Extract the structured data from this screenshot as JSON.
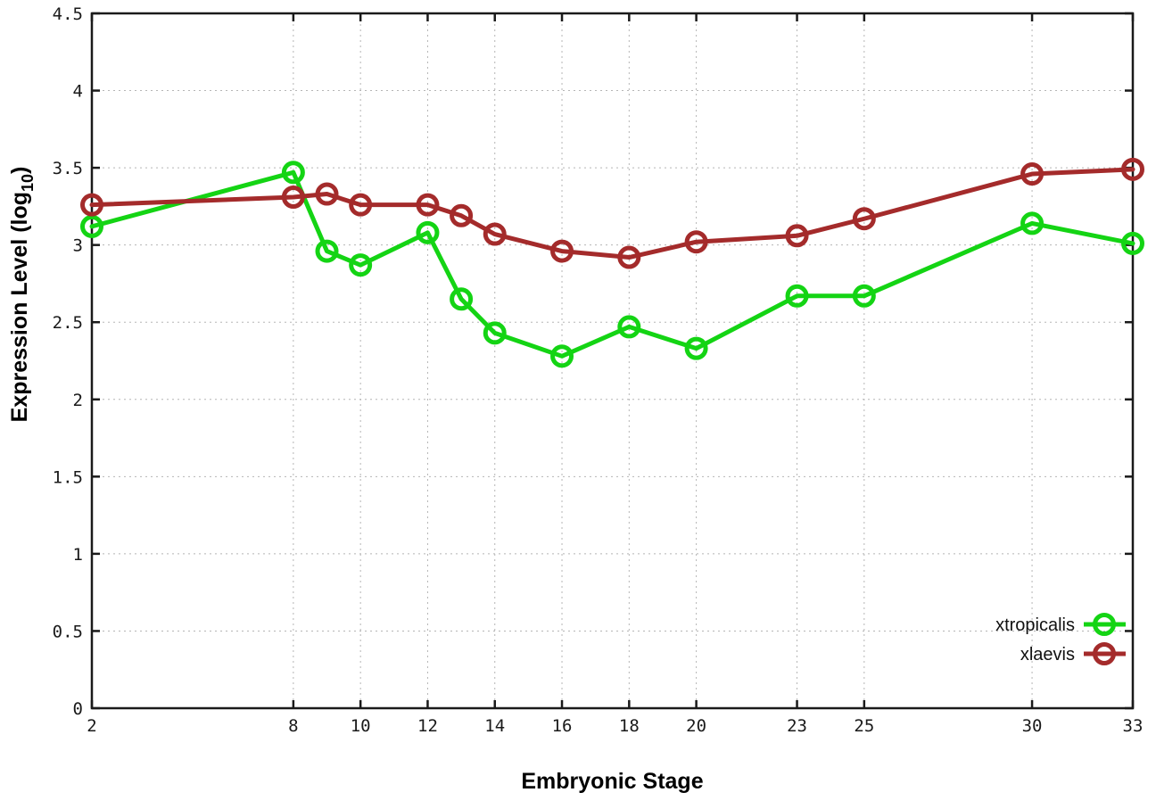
{
  "chart_data": {
    "type": "line",
    "title": "",
    "xlabel": "Embryonic Stage",
    "ylabel_main": "Expression Level (log",
    "ylabel_sub": "10",
    "ylabel_close": ")",
    "xlim": [
      2,
      33
    ],
    "ylim": [
      0,
      4.5
    ],
    "grid": true,
    "legend_position": "bottom-right",
    "x": [
      2,
      8,
      9,
      10,
      12,
      13,
      14,
      16,
      18,
      20,
      23,
      25,
      30,
      33
    ],
    "xticks": [
      2,
      8,
      10,
      12,
      14,
      16,
      18,
      20,
      23,
      25,
      30,
      33
    ],
    "xtick_labels": [
      "2",
      "8",
      "10",
      "12",
      "14",
      "16",
      "18",
      "20",
      "23",
      "25",
      "30",
      "33"
    ],
    "yticks": [
      0,
      0.5,
      1,
      1.5,
      2,
      2.5,
      3,
      3.5,
      4,
      4.5
    ],
    "ytick_labels": [
      "0",
      "0.5",
      "1",
      "1.5",
      "2",
      "2.5",
      "3",
      "3.5",
      "4",
      "4.5"
    ],
    "series": [
      {
        "name": "xtropicalis",
        "color": "#14d414",
        "values": [
          3.12,
          3.47,
          2.96,
          2.87,
          3.08,
          2.65,
          2.43,
          2.28,
          2.47,
          2.33,
          2.67,
          2.67,
          3.14,
          3.01
        ]
      },
      {
        "name": "xlaevis",
        "color": "#a42b2b",
        "values": [
          3.26,
          3.31,
          3.33,
          3.26,
          3.26,
          3.19,
          3.07,
          2.96,
          2.92,
          3.02,
          3.06,
          3.17,
          3.46,
          3.49
        ]
      }
    ]
  },
  "style_colors": {
    "border": "#1a1a1a",
    "grid": "#b5b5b5",
    "tick_text": "#1a1a1a"
  }
}
